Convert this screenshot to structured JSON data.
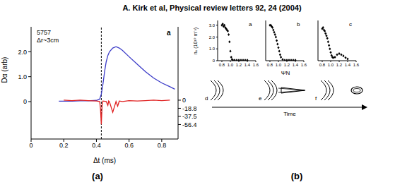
{
  "title": "A. Kirk et al, Physical review letters 92, 24 (2004)",
  "panel_labels": [
    "(a)",
    "(b)"
  ],
  "diagram": {
    "panels": [
      "d",
      "e",
      "f"
    ],
    "arrow_label": "Time"
  },
  "chart_data": [
    {
      "type": "line",
      "panel": "a",
      "annotations": [
        "5757",
        "Δr~3cm"
      ],
      "xlabel": "Δt (ms)",
      "ylabel": "Dα (arb)",
      "xlim": [
        0,
        0.9
      ],
      "xticks": [
        0,
        0.2,
        0.4,
        0.6,
        0.8
      ],
      "ylim": [
        -1.5,
        3
      ],
      "yticks": [
        0,
        {
          "value": 1,
          "label": "1.0"
        },
        {
          "value": 2,
          "label": "2.0"
        }
      ],
      "y2lim": [
        -90,
        170
      ],
      "y2ticks": [
        0,
        -18.8,
        -37.5,
        -56.4
      ],
      "reference_x": 0.43,
      "series": [
        {
          "color": "#3c3cc8",
          "x": [
            0.17,
            0.25,
            0.3,
            0.35,
            0.4,
            0.42,
            0.43,
            0.44,
            0.45,
            0.46,
            0.47,
            0.48,
            0.5,
            0.52,
            0.54,
            0.56,
            0.6,
            0.65,
            0.7,
            0.75,
            0.8,
            0.85,
            0.88
          ],
          "values": [
            0.02,
            0.02,
            0.03,
            0.03,
            0.05,
            0.1,
            0.3,
            0.7,
            1.2,
            1.6,
            1.85,
            2.0,
            2.15,
            2.2,
            2.15,
            2.05,
            1.8,
            1.5,
            1.2,
            0.95,
            0.75,
            0.6,
            0.5
          ]
        },
        {
          "color": "#e02020",
          "axis": "y2",
          "x": [
            0.2,
            0.25,
            0.3,
            0.35,
            0.4,
            0.42,
            0.425,
            0.43,
            0.435,
            0.44,
            0.46,
            0.47,
            0.475,
            0.48,
            0.5,
            0.52,
            0.53,
            0.54,
            0.56,
            0.6,
            0.65,
            0.7,
            0.75,
            0.8,
            0.85
          ],
          "values": [
            0,
            -1,
            0,
            -1,
            -2,
            -3,
            -20,
            -56,
            -10,
            -2,
            -3,
            -12,
            -2,
            -4,
            -28,
            -3,
            -14,
            -2,
            -3,
            -1,
            -2,
            -1,
            0,
            -1,
            0
          ]
        }
      ]
    },
    {
      "type": "scatter",
      "panel": "a",
      "ylabel": "nₑ (10¹⁹ m⁻³)",
      "color": "#000000",
      "marker": "diamond",
      "xlim": [
        0.7,
        1.6
      ],
      "xticks": [
        0.8,
        {
          "value": 1,
          "label": "1.0"
        },
        1.2,
        1.4,
        1.6
      ],
      "ylim": [
        0,
        3.4
      ],
      "yticks": [
        0,
        {
          "value": 1,
          "label": "1.0"
        },
        {
          "value": 2,
          "label": "2.0"
        },
        {
          "value": 3,
          "label": "3.0"
        }
      ],
      "x": [
        0.8,
        0.82,
        0.84,
        0.86,
        0.88,
        0.9,
        0.92,
        0.94,
        0.96,
        0.98,
        1.0,
        1.02,
        1.04,
        1.06,
        1.1,
        1.15,
        1.2,
        1.25,
        1.3,
        1.35,
        1.4
      ],
      "values": [
        3.0,
        3.1,
        2.9,
        3.0,
        2.8,
        2.7,
        2.6,
        2.5,
        2.2,
        1.6,
        0.8,
        0.3,
        0.1,
        0.05,
        0.05,
        0.05,
        0.05,
        0.05,
        0.05,
        0.05,
        0.05
      ]
    },
    {
      "type": "scatter",
      "panel": "b",
      "xlabel": "ΨN",
      "tick_labels": "x",
      "color": "#000000",
      "marker": "diamond",
      "xlim": [
        0.7,
        1.6
      ],
      "xticks": [
        0.8,
        {
          "value": 1,
          "label": "1.0"
        },
        1.2,
        1.4,
        1.6
      ],
      "ylim": [
        0,
        3.4
      ],
      "yticks": [
        0,
        {
          "value": 1,
          "label": "1.0"
        },
        {
          "value": 2,
          "label": "2.0"
        },
        {
          "value": 3,
          "label": "3.0"
        }
      ],
      "x": [
        0.8,
        0.82,
        0.84,
        0.86,
        0.88,
        0.9,
        0.92,
        0.94,
        0.96,
        0.98,
        1.0,
        1.02,
        1.04,
        1.06,
        1.1,
        1.15,
        1.2,
        1.25,
        1.3,
        1.35,
        1.4
      ],
      "values": [
        3.0,
        3.0,
        2.9,
        2.8,
        2.6,
        2.4,
        2.2,
        2.0,
        1.7,
        1.4,
        1.1,
        0.8,
        0.5,
        0.3,
        0.1,
        0.05,
        0.05,
        0.05,
        0.05,
        0.05,
        0.05
      ]
    },
    {
      "type": "scatter",
      "panel": "c",
      "tick_labels": "x",
      "color": "#000000",
      "marker": "diamond",
      "xlim": [
        0.7,
        1.6
      ],
      "xticks": [
        0.8,
        {
          "value": 1,
          "label": "1.0"
        },
        1.2,
        1.4,
        1.6
      ],
      "ylim": [
        0,
        3.4
      ],
      "yticks": [
        0,
        {
          "value": 1,
          "label": "1.0"
        },
        {
          "value": 2,
          "label": "2.0"
        },
        {
          "value": 3,
          "label": "3.0"
        }
      ],
      "x": [
        0.8,
        0.82,
        0.84,
        0.86,
        0.88,
        0.9,
        0.92,
        0.94,
        0.96,
        0.98,
        1.0,
        1.02,
        1.04,
        1.06,
        1.1,
        1.15,
        1.2,
        1.25,
        1.3,
        1.35,
        1.4
      ],
      "values": [
        2.7,
        2.8,
        2.6,
        2.5,
        2.3,
        2.1,
        1.9,
        1.6,
        1.3,
        1.0,
        0.7,
        0.45,
        0.3,
        0.25,
        0.3,
        0.5,
        0.6,
        0.5,
        0.4,
        0.25,
        0.15
      ]
    }
  ]
}
